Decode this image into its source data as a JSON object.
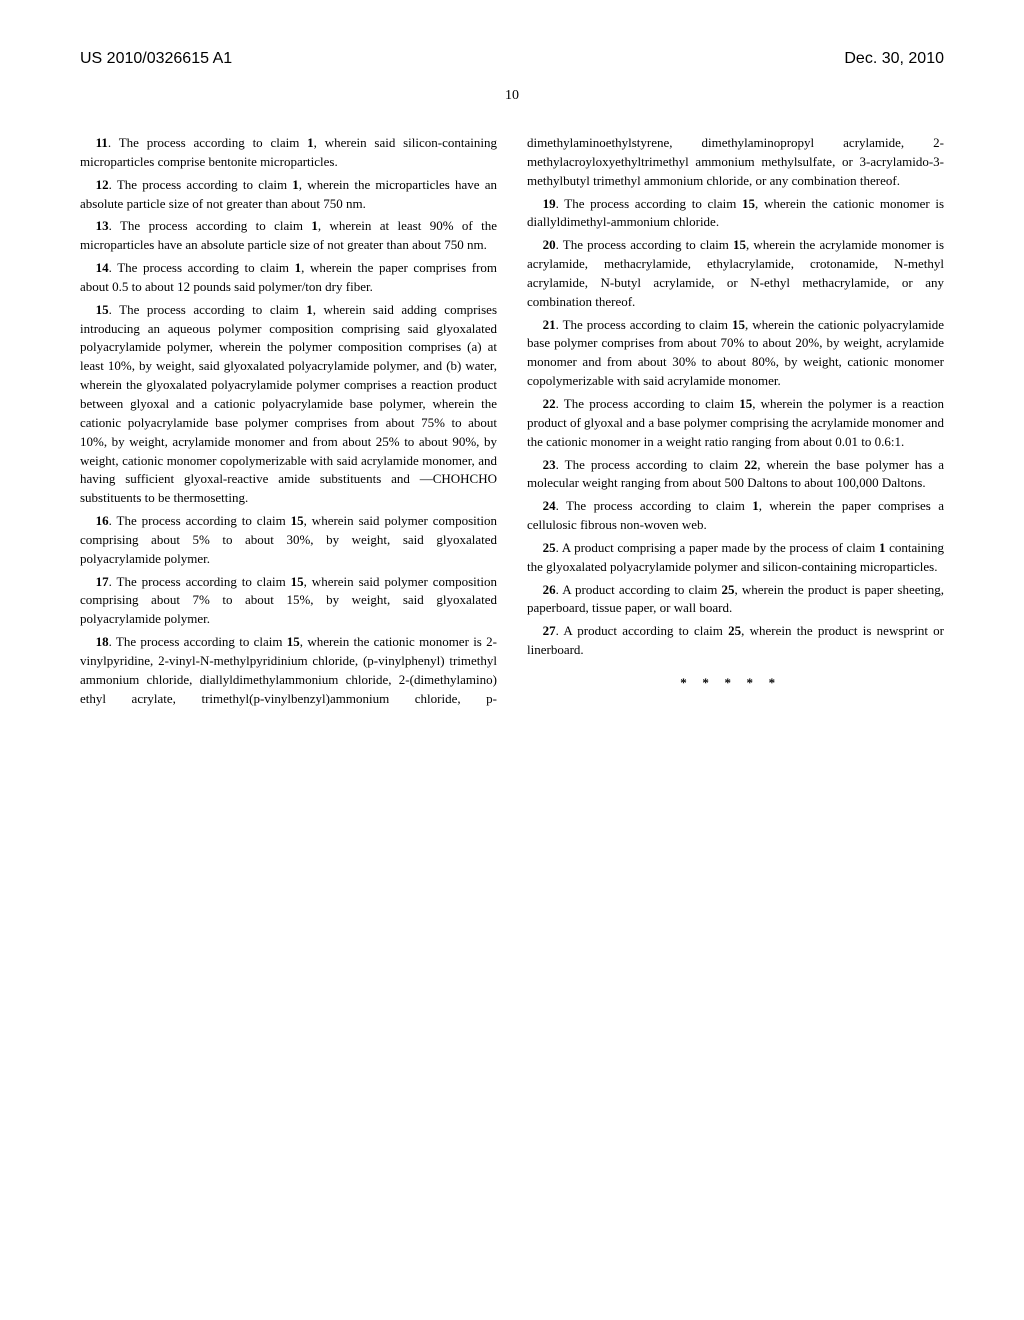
{
  "header": {
    "pub_number": "US 2010/0326615 A1",
    "pub_date": "Dec. 30, 2010"
  },
  "page_number": "10",
  "claims": [
    {
      "num": "11",
      "ref": "1",
      "text_before": ". The process according to claim ",
      "text_after": ", wherein said silicon-containing microparticles comprise bentonite microparticles."
    },
    {
      "num": "12",
      "ref": "1",
      "text_before": ". The process according to claim ",
      "text_after": ", wherein the microparticles have an absolute particle size of not greater than about 750 nm."
    },
    {
      "num": "13",
      "ref": "1",
      "text_before": ". The process according to claim ",
      "text_after": ", wherein at least 90% of the microparticles have an absolute particle size of not greater than about 750 nm."
    },
    {
      "num": "14",
      "ref": "1",
      "text_before": ". The process according to claim ",
      "text_after": ", wherein the paper comprises from about 0.5 to about 12 pounds said polymer/ton dry fiber."
    },
    {
      "num": "15",
      "ref": "1",
      "text_before": ". The process according to claim ",
      "text_after": ", wherein said adding comprises introducing an aqueous polymer composition comprising said glyoxalated polyacrylamide polymer, wherein the polymer composition comprises (a) at least 10%, by weight, said glyoxalated polyacrylamide polymer, and (b) water, wherein the glyoxalated polyacrylamide polymer comprises a reaction product between glyoxal and a cationic polyacrylamide base polymer, wherein the cationic polyacrylamide base polymer comprises from about 75% to about 10%, by weight, acrylamide monomer and from about 25% to about 90%, by weight, cationic monomer copolymerizable with said acrylamide monomer, and having sufficient glyoxal-reactive amide substituents and —CHOHCHO substituents to be thermosetting."
    },
    {
      "num": "16",
      "ref": "15",
      "text_before": ". The process according to claim ",
      "text_after": ", wherein said polymer composition comprising about 5% to about 30%, by weight, said glyoxalated polyacrylamide polymer."
    },
    {
      "num": "17",
      "ref": "15",
      "text_before": ". The process according to claim ",
      "text_after": ", wherein said polymer composition comprising about 7% to about 15%, by weight, said glyoxalated polyacrylamide polymer."
    },
    {
      "num": "18",
      "ref": "15",
      "text_before": ". The process according to claim ",
      "text_after": ", wherein the cationic monomer is 2-vinylpyridine, 2-vinyl-N-methylpyridinium chloride, (p-vinylphenyl) trimethyl ammonium chloride, diallyldimethylammonium chloride, 2-(dimethylamino) ethyl acrylate, trimethyl(p-vinylbenzyl)ammonium chloride, p-dimethylaminoethylstyrene, dimethylaminopropyl acrylamide, 2-methylacroyloxyethyltrimethyl ammonium methylsulfate, or 3-acrylamido-3-methylbutyl trimethyl ammonium chloride, or any combination thereof."
    },
    {
      "num": "19",
      "ref": "15",
      "text_before": ". The process according to claim ",
      "text_after": ", wherein the cationic monomer is diallyldimethyl-ammonium chloride."
    },
    {
      "num": "20",
      "ref": "15",
      "text_before": ". The process according to claim ",
      "text_after": ", wherein the acrylamide monomer is acrylamide, methacrylamide, ethylacrylamide, crotonamide, N-methyl acrylamide, N-butyl acrylamide, or N-ethyl methacrylamide, or any combination thereof."
    },
    {
      "num": "21",
      "ref": "15",
      "text_before": ". The process according to claim ",
      "text_after": ", wherein the cationic polyacrylamide base polymer comprises from about 70% to about 20%, by weight, acrylamide monomer and from about 30% to about 80%, by weight, cationic monomer copolymerizable with said acrylamide monomer."
    },
    {
      "num": "22",
      "ref": "15",
      "text_before": ". The process according to claim ",
      "text_after": ", wherein the polymer is a reaction product of glyoxal and a base polymer comprising the acrylamide monomer and the cationic monomer in a weight ratio ranging from about 0.01 to 0.6:1."
    },
    {
      "num": "23",
      "ref": "22",
      "text_before": ". The process according to claim ",
      "text_after": ", wherein the base polymer has a molecular weight ranging from about 500 Daltons to about 100,000 Daltons."
    },
    {
      "num": "24",
      "ref": "1",
      "text_before": ". The process according to claim ",
      "text_after": ", wherein the paper comprises a cellulosic fibrous non-woven web."
    },
    {
      "num": "25",
      "ref": "1",
      "text_before": ". A product comprising a paper made by the process of claim ",
      "text_after": " containing the glyoxalated polyacrylamide polymer and silicon-containing microparticles."
    },
    {
      "num": "26",
      "ref": "25",
      "text_before": ". A product according to claim ",
      "text_after": ", wherein the product is paper sheeting, paperboard, tissue paper, or wall board."
    },
    {
      "num": "27",
      "ref": "25",
      "text_before": ". A product according to claim ",
      "text_after": ", wherein the product is newsprint or linerboard."
    }
  ],
  "end_marker": "*****"
}
